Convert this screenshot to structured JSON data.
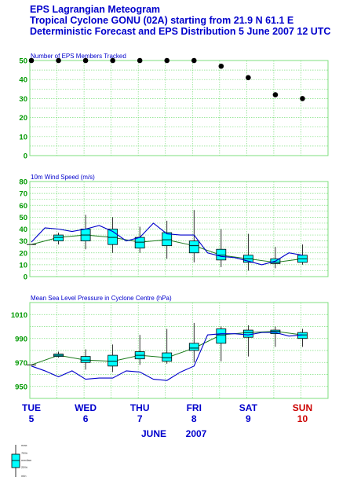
{
  "titles": {
    "line1": "EPS Lagrangian Meteogram",
    "line2": "Tropical Cyclone GONU (02A) starting from 21.9 N  61.1 E",
    "line3": "Deterministic Forecast and EPS Distribution 5 June 2007 12 UTC"
  },
  "colors": {
    "title": "#0000cc",
    "grid": "#7fdf7f",
    "box": "#00ffff",
    "deterministic": "#0000cc",
    "eps_median_line": "#1a7a1a",
    "day_label": "#0000cc",
    "sunday_label": "#cc0000"
  },
  "x_axis": {
    "days": [
      {
        "name": "TUE",
        "num": "5",
        "step": 0,
        "sunday": false
      },
      {
        "name": "WED",
        "num": "6",
        "step": 2,
        "sunday": false
      },
      {
        "name": "THU",
        "num": "7",
        "step": 4,
        "sunday": false
      },
      {
        "name": "FRI",
        "num": "8",
        "step": 6,
        "sunday": false
      },
      {
        "name": "SAT",
        "num": "9",
        "step": 8,
        "sunday": false
      },
      {
        "name": "SUN",
        "num": "10",
        "step": 10,
        "sunday": true
      }
    ],
    "month": "JUNE",
    "year": "2007"
  },
  "legend": {
    "max": "max",
    "p75": "75%",
    "median": "median",
    "p25": "25%",
    "min": "min"
  },
  "chart_data": [
    {
      "type": "scatter",
      "title": "Number of EPS Members Tracked",
      "xlabel": "",
      "ylabel": "",
      "ylim": [
        0,
        50
      ],
      "yticks": [
        0,
        10,
        20,
        30,
        40,
        50
      ],
      "grid": true,
      "x": [
        0,
        1,
        2,
        3,
        4,
        5,
        6,
        7,
        8,
        9,
        10
      ],
      "values": [
        50,
        50,
        50,
        50,
        50,
        50,
        50,
        47,
        41,
        32,
        30
      ]
    },
    {
      "type": "box",
      "title": "10m Wind Speed (m/s)",
      "xlabel": "",
      "ylabel": "",
      "ylim": [
        0,
        80
      ],
      "yticks": [
        0,
        10,
        20,
        30,
        40,
        50,
        60,
        70,
        80
      ],
      "grid": true,
      "boxes": [
        {
          "x": 0,
          "min": 27,
          "p25": 27,
          "median": 27,
          "p75": 27,
          "max": 27
        },
        {
          "x": 1,
          "min": 27,
          "p25": 30,
          "median": 33,
          "p75": 35,
          "max": 37
        },
        {
          "x": 2,
          "min": 23,
          "p25": 30,
          "median": 35,
          "p75": 40,
          "max": 52
        },
        {
          "x": 3,
          "min": 20,
          "p25": 27,
          "median": 33,
          "p75": 40,
          "max": 50
        },
        {
          "x": 4,
          "min": 20,
          "p25": 24,
          "median": 29,
          "p75": 33,
          "max": 42
        },
        {
          "x": 5,
          "min": 15,
          "p25": 26,
          "median": 31,
          "p75": 37,
          "max": 47
        },
        {
          "x": 6,
          "min": 12,
          "p25": 20,
          "median": 26,
          "p75": 30,
          "max": 56
        },
        {
          "x": 7,
          "min": 8,
          "p25": 14,
          "median": 18,
          "p75": 23,
          "max": 40
        },
        {
          "x": 8,
          "min": 5,
          "p25": 12,
          "median": 15,
          "p75": 18,
          "max": 36
        },
        {
          "x": 9,
          "min": 7,
          "p25": 11,
          "median": 12,
          "p75": 15,
          "max": 25
        },
        {
          "x": 10,
          "min": 10,
          "p25": 12,
          "median": 15,
          "p75": 18,
          "max": 27
        }
      ],
      "deterministic": {
        "x": [
          0,
          0.5,
          1,
          1.5,
          2,
          2.5,
          3,
          3.5,
          4,
          4.5,
          5,
          5.5,
          6,
          6.5,
          7,
          7.5,
          8,
          8.5,
          9,
          9.5,
          10
        ],
        "values": [
          29,
          41,
          40,
          38,
          40,
          43,
          38,
          30,
          33,
          45,
          36,
          35,
          35,
          20,
          17,
          16,
          13,
          10,
          13,
          20,
          18
        ]
      }
    },
    {
      "type": "box",
      "title": "Mean Sea Level Pressure in Cyclone Centre (hPa)",
      "xlabel": "",
      "ylabel": "",
      "ylim": [
        940,
        1020
      ],
      "yticks": [
        950,
        970,
        990,
        1010
      ],
      "grid": true,
      "boxes": [
        {
          "x": 0,
          "min": 968,
          "p25": 968,
          "median": 968,
          "p75": 968,
          "max": 968
        },
        {
          "x": 1,
          "min": 974,
          "p25": 975,
          "median": 976,
          "p75": 977,
          "max": 979
        },
        {
          "x": 2,
          "min": 964,
          "p25": 970,
          "median": 972,
          "p75": 975,
          "max": 981
        },
        {
          "x": 3,
          "min": 962,
          "p25": 967,
          "median": 971,
          "p75": 976,
          "max": 985
        },
        {
          "x": 4,
          "min": 968,
          "p25": 973,
          "median": 976,
          "p75": 979,
          "max": 993
        },
        {
          "x": 5,
          "min": 969,
          "p25": 971,
          "median": 974,
          "p75": 978,
          "max": 998
        },
        {
          "x": 6,
          "min": 970,
          "p25": 980,
          "median": 982,
          "p75": 986,
          "max": 1003
        },
        {
          "x": 7,
          "min": 971,
          "p25": 986,
          "median": 993,
          "p75": 998,
          "max": 1000
        },
        {
          "x": 8,
          "min": 975,
          "p25": 991,
          "median": 995,
          "p75": 997,
          "max": 1001
        },
        {
          "x": 9,
          "min": 983,
          "p25": 994,
          "median": 996,
          "p75": 997,
          "max": 1000
        },
        {
          "x": 10,
          "min": 983,
          "p25": 990,
          "median": 993,
          "p75": 995,
          "max": 998
        }
      ],
      "deterministic": {
        "x": [
          0,
          0.5,
          1,
          1.5,
          2,
          2.5,
          3,
          3.5,
          4,
          4.5,
          5,
          5.5,
          6,
          6.5,
          7,
          7.5,
          8,
          8.5,
          9,
          9.5,
          10
        ],
        "values": [
          967,
          963,
          958,
          963,
          956,
          957,
          957,
          963,
          962,
          956,
          955,
          962,
          967,
          993,
          994,
          994,
          993,
          995,
          995,
          992,
          993
        ]
      }
    }
  ]
}
